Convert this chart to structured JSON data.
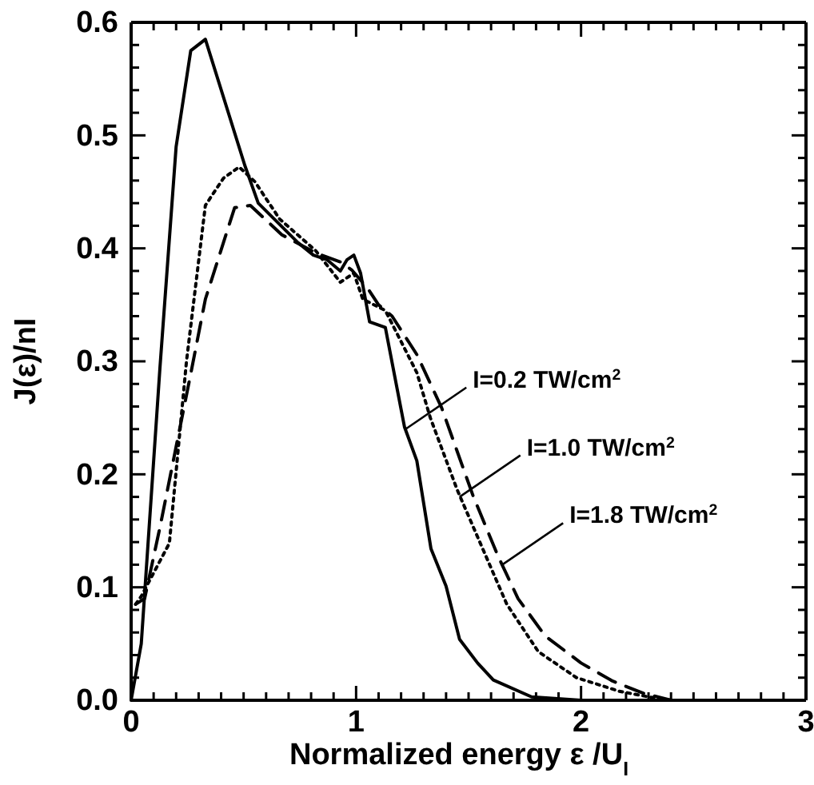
{
  "chart_data": {
    "type": "line",
    "xlabel": "Normalized energy ε /U$_{I}$",
    "ylabel": "J(ε)/nI",
    "xlim": [
      0,
      3
    ],
    "ylim": [
      0,
      0.6
    ],
    "xticks": [
      0,
      {
        "value": 0.1,
        "label": null
      },
      {
        "value": 0.2,
        "label": null
      },
      {
        "value": 0.3,
        "label": null
      },
      {
        "value": 0.4,
        "label": null
      },
      {
        "value": 0.5,
        "label": null
      },
      {
        "value": 0.6,
        "label": null
      },
      {
        "value": 0.7,
        "label": null
      },
      {
        "value": 0.8,
        "label": null
      },
      {
        "value": 0.9,
        "label": null
      },
      1,
      {
        "value": 1.1,
        "label": null
      },
      {
        "value": 1.2,
        "label": null
      },
      {
        "value": 1.3,
        "label": null
      },
      {
        "value": 1.4,
        "label": null
      },
      {
        "value": 1.5,
        "label": null
      },
      {
        "value": 1.6,
        "label": null
      },
      {
        "value": 1.7,
        "label": null
      },
      {
        "value": 1.8,
        "label": null
      },
      {
        "value": 1.9,
        "label": null
      },
      2,
      {
        "value": 2.1,
        "label": null
      },
      {
        "value": 2.2,
        "label": null
      },
      {
        "value": 2.3,
        "label": null
      },
      {
        "value": 2.4,
        "label": null
      },
      {
        "value": 2.5,
        "label": null
      },
      {
        "value": 2.6,
        "label": null
      },
      {
        "value": 2.7,
        "label": null
      },
      {
        "value": 2.8,
        "label": null
      },
      {
        "value": 2.9,
        "label": null
      },
      3
    ],
    "yticks": [
      {
        "value": 0,
        "label": "0.0"
      },
      {
        "value": 0.02,
        "label": null
      },
      {
        "value": 0.04,
        "label": null
      },
      {
        "value": 0.06,
        "label": null
      },
      {
        "value": 0.08,
        "label": null
      },
      {
        "value": 0.1,
        "label": "0.1"
      },
      {
        "value": 0.12,
        "label": null
      },
      {
        "value": 0.14,
        "label": null
      },
      {
        "value": 0.16,
        "label": null
      },
      {
        "value": 0.18,
        "label": null
      },
      {
        "value": 0.2,
        "label": "0.2"
      },
      {
        "value": 0.22,
        "label": null
      },
      {
        "value": 0.24,
        "label": null
      },
      {
        "value": 0.26,
        "label": null
      },
      {
        "value": 0.28,
        "label": null
      },
      {
        "value": 0.3,
        "label": "0.3"
      },
      {
        "value": 0.32,
        "label": null
      },
      {
        "value": 0.34,
        "label": null
      },
      {
        "value": 0.36,
        "label": null
      },
      {
        "value": 0.38,
        "label": null
      },
      {
        "value": 0.4,
        "label": "0.4"
      },
      {
        "value": 0.42,
        "label": null
      },
      {
        "value": 0.44,
        "label": null
      },
      {
        "value": 0.46,
        "label": null
      },
      {
        "value": 0.48,
        "label": null
      },
      {
        "value": 0.5,
        "label": "0.5"
      },
      {
        "value": 0.52,
        "label": null
      },
      {
        "value": 0.54,
        "label": null
      },
      {
        "value": 0.56,
        "label": null
      },
      {
        "value": 0.58,
        "label": null
      },
      {
        "value": 0.6,
        "label": "0.6"
      }
    ],
    "grid": false,
    "marker": "none",
    "series": [
      {
        "color": "#000000",
        "line_style": "solid",
        "x": [
          0,
          0.045,
          0.128,
          0.2,
          0.265,
          0.33,
          0.506,
          0.565,
          0.742,
          0.81,
          0.87,
          0.93,
          0.96,
          0.99,
          1.02,
          1.06,
          1.13,
          1.215,
          1.27,
          1.333,
          1.4,
          1.46,
          1.54,
          1.61,
          1.78,
          2.0
        ],
        "values": [
          0,
          0.05,
          0.294,
          0.49,
          0.575,
          0.585,
          0.473,
          0.44,
          0.405,
          0.394,
          0.39,
          0.38,
          0.39,
          0.394,
          0.378,
          0.335,
          0.33,
          0.242,
          0.212,
          0.134,
          0.101,
          0.054,
          0.033,
          0.018,
          0.003,
          0
        ]
      },
      {
        "color": "#000000",
        "line_style": "dotted",
        "x": [
          0.02,
          0.045,
          0.17,
          0.246,
          0.33,
          0.41,
          0.48,
          0.55,
          0.66,
          0.82,
          0.93,
          0.99,
          1.03,
          1.13,
          1.27,
          1.33,
          1.45,
          1.55,
          1.67,
          1.81,
          1.98,
          2.17,
          2.3,
          2.4
        ],
        "values": [
          0.085,
          0.092,
          0.139,
          0.3,
          0.438,
          0.462,
          0.472,
          0.459,
          0.426,
          0.398,
          0.37,
          0.378,
          0.355,
          0.345,
          0.29,
          0.25,
          0.186,
          0.14,
          0.085,
          0.043,
          0.02,
          0.008,
          0.003,
          0
        ]
      },
      {
        "color": "#000000",
        "line_style": "dashed",
        "x": [
          0.02,
          0.06,
          0.128,
          0.27,
          0.33,
          0.46,
          0.53,
          0.67,
          0.82,
          0.93,
          0.98,
          1.05,
          1.1,
          1.16,
          1.27,
          1.38,
          1.52,
          1.63,
          1.72,
          1.84,
          2.0,
          2.14,
          2.28,
          2.4
        ],
        "values": [
          0.085,
          0.09,
          0.153,
          0.294,
          0.355,
          0.436,
          0.438,
          0.412,
          0.396,
          0.388,
          0.381,
          0.365,
          0.35,
          0.34,
          0.306,
          0.259,
          0.181,
          0.128,
          0.09,
          0.057,
          0.033,
          0.017,
          0.006,
          0
        ]
      }
    ],
    "annotations": [
      {
        "text": "I=0.2  TW/cm$^{2}$",
        "x": 1.22,
        "y": 0.24
      },
      {
        "text": "I=1.0  TW/cm$^{2}$",
        "x": 1.46,
        "y": 0.18
      },
      {
        "text": "I=1.8  TW/cm$^{2}$",
        "x": 1.65,
        "y": 0.12
      }
    ]
  }
}
